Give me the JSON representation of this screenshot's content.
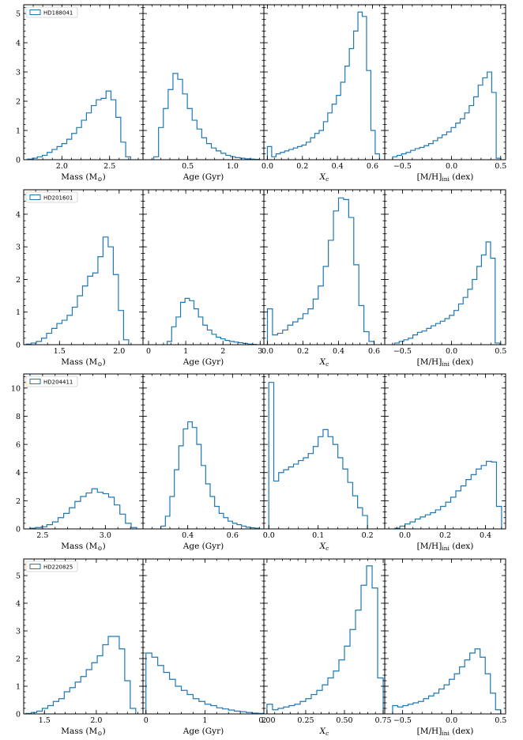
{
  "chart_data": [
    {
      "type": "histogram",
      "legend": "HD188041",
      "ylim": [
        0,
        5.3
      ],
      "yticks": [
        "0",
        "1",
        "2",
        "3",
        "4",
        "5"
      ],
      "yticks_values": [
        0,
        1,
        2,
        3,
        4,
        5
      ],
      "panels": [
        {
          "xlabel": "Mass (M⊙)",
          "xlim": [
            1.6,
            2.85
          ],
          "xticks": [
            "2.0",
            "2.5"
          ],
          "xticks_values": [
            2.0,
            2.5
          ],
          "x0": 1.64,
          "x1": 2.72,
          "heights": [
            0.02,
            0.05,
            0.1,
            0.15,
            0.25,
            0.35,
            0.45,
            0.55,
            0.7,
            0.9,
            1.1,
            1.35,
            1.6,
            1.85,
            2.05,
            2.1,
            2.35,
            2.05,
            1.45,
            0.6,
            0.1
          ]
        },
        {
          "xlabel": "Age (Gyr)",
          "xlim": [
            0.0,
            1.35
          ],
          "xticks": [
            "0.5",
            "1.0"
          ],
          "xticks_values": [
            0.5,
            1.0
          ],
          "x0": 0.12,
          "x1": 1.3,
          "heights": [
            0.1,
            1.1,
            1.75,
            2.4,
            2.95,
            2.75,
            2.25,
            1.75,
            1.35,
            1.05,
            0.75,
            0.55,
            0.4,
            0.3,
            0.22,
            0.15,
            0.1,
            0.07,
            0.05,
            0.03,
            0.02,
            0.01
          ]
        },
        {
          "xlabel": "Xc",
          "xlim": [
            -0.02,
            0.67
          ],
          "xticks": [
            "0.0",
            "0.2",
            "0.4",
            "0.6"
          ],
          "xticks_values": [
            0.0,
            0.2,
            0.4,
            0.6
          ],
          "x0": 0.0,
          "x1": 0.64,
          "heights": [
            0.45,
            0.1,
            0.2,
            0.25,
            0.3,
            0.35,
            0.4,
            0.45,
            0.5,
            0.6,
            0.75,
            0.9,
            1.0,
            1.3,
            1.6,
            1.9,
            2.2,
            2.65,
            3.2,
            3.8,
            4.4,
            5.05,
            4.9,
            3.05,
            1.0,
            0.2
          ]
        },
        {
          "xlabel": "[M/H]ini (dex)",
          "xlim": [
            -0.68,
            0.55
          ],
          "xticks": [
            "−0.5",
            "0.0",
            "0.5"
          ],
          "xticks_values": [
            -0.5,
            0.0,
            0.5
          ],
          "x0": -0.6,
          "x1": 0.5,
          "heights": [
            0.1,
            0.15,
            0.2,
            0.25,
            0.32,
            0.38,
            0.42,
            0.48,
            0.55,
            0.65,
            0.75,
            0.85,
            0.95,
            1.1,
            1.25,
            1.4,
            1.6,
            1.85,
            2.15,
            2.55,
            2.8,
            3.0,
            2.3,
            0.05
          ]
        }
      ]
    },
    {
      "type": "histogram",
      "legend": "HD201601",
      "ylim": [
        0,
        4.75
      ],
      "yticks": [
        "0",
        "1",
        "2",
        "3",
        "4"
      ],
      "yticks_values": [
        0,
        1,
        2,
        3,
        4
      ],
      "panels": [
        {
          "xlabel": "Mass (M⊙)",
          "xlim": [
            1.2,
            2.2
          ],
          "xticks": [
            "1.5",
            "2.0"
          ],
          "xticks_values": [
            1.5,
            2.0
          ],
          "x0": 1.22,
          "x1": 2.08,
          "heights": [
            0.02,
            0.05,
            0.1,
            0.2,
            0.35,
            0.5,
            0.65,
            0.75,
            0.9,
            1.15,
            1.5,
            1.8,
            2.1,
            2.2,
            2.7,
            3.3,
            3.0,
            2.15,
            1.05,
            0.15
          ]
        },
        {
          "xlabel": "Age (Gyr)",
          "xlim": [
            -0.15,
            3.1
          ],
          "xticks": [
            "0",
            "1",
            "2",
            "3"
          ],
          "xticks_values": [
            0,
            1,
            2,
            3
          ],
          "x0": 0.5,
          "x1": 2.9,
          "heights": [
            0.1,
            0.55,
            0.85,
            1.3,
            1.42,
            1.35,
            1.1,
            0.85,
            0.6,
            0.45,
            0.32,
            0.23,
            0.18,
            0.13,
            0.1,
            0.08,
            0.06,
            0.04,
            0.02,
            0.01
          ]
        },
        {
          "xlabel": "Xc",
          "xlim": [
            -0.02,
            0.66
          ],
          "xticks": [
            "0.0",
            "0.2",
            "0.4",
            "0.6"
          ],
          "xticks_values": [
            0.0,
            0.2,
            0.4,
            0.6
          ],
          "x0": 0.0,
          "x1": 0.6,
          "heights": [
            1.1,
            0.3,
            0.35,
            0.45,
            0.6,
            0.7,
            0.8,
            0.95,
            1.1,
            1.4,
            1.8,
            2.4,
            3.2,
            4.1,
            4.5,
            4.45,
            3.9,
            2.45,
            1.2,
            0.4,
            0.1
          ]
        },
        {
          "xlabel": "[M/H]ini (dex)",
          "xlim": [
            -0.68,
            0.55
          ],
          "xticks": [
            "−0.5",
            "0.0",
            "0.5"
          ],
          "xticks_values": [
            -0.5,
            0.0,
            0.5
          ],
          "x0": -0.58,
          "x1": 0.49,
          "heights": [
            0.05,
            0.1,
            0.15,
            0.2,
            0.3,
            0.38,
            0.42,
            0.5,
            0.58,
            0.65,
            0.72,
            0.8,
            0.9,
            1.05,
            1.25,
            1.45,
            1.7,
            2.0,
            2.4,
            2.75,
            3.15,
            2.65,
            0.05
          ]
        }
      ]
    },
    {
      "type": "histogram",
      "legend": "HD204411",
      "ylim": [
        0,
        11
      ],
      "yticks": [
        "0",
        "2",
        "4",
        "6",
        "8",
        "10"
      ],
      "yticks_values": [
        0,
        2,
        4,
        6,
        8,
        10
      ],
      "panels": [
        {
          "xlabel": "Mass (M⊙)",
          "xlim": [
            2.35,
            3.3
          ],
          "xticks": [
            "2.5",
            "3.0"
          ],
          "xticks_values": [
            2.5,
            3.0
          ],
          "x0": 2.4,
          "x1": 3.25,
          "heights": [
            0.05,
            0.1,
            0.15,
            0.3,
            0.5,
            0.8,
            1.1,
            1.5,
            1.95,
            2.3,
            2.55,
            2.85,
            2.6,
            2.5,
            2.25,
            1.7,
            1.05,
            0.4,
            0.1
          ]
        },
        {
          "xlabel": "Age (Gyr)",
          "xlim": [
            0.2,
            0.74
          ],
          "xticks": [
            "0.4",
            "0.6"
          ],
          "xticks_values": [
            0.4,
            0.6
          ],
          "x0": 0.28,
          "x1": 0.72,
          "heights": [
            0.2,
            0.9,
            2.3,
            4.2,
            5.9,
            7.1,
            7.6,
            7.2,
            6.0,
            4.5,
            3.2,
            2.3,
            1.6,
            1.1,
            0.8,
            0.55,
            0.4,
            0.3,
            0.2,
            0.12,
            0.08,
            0.05
          ]
        },
        {
          "xlabel": "Xc",
          "xlim": [
            -0.01,
            0.235
          ],
          "xticks": [
            "0.0",
            "0.1",
            "0.2"
          ],
          "xticks_values": [
            0.0,
            0.1,
            0.2
          ],
          "x0": 0.0,
          "x1": 0.2,
          "heights": [
            10.4,
            3.4,
            4.0,
            4.2,
            4.4,
            4.6,
            4.85,
            5.05,
            5.35,
            5.85,
            6.55,
            7.05,
            6.55,
            6.0,
            5.05,
            4.25,
            3.3,
            2.35,
            1.5,
            0.95
          ]
        },
        {
          "xlabel": "[M/H]ini (dex)",
          "xlim": [
            -0.1,
            0.5
          ],
          "xticks": [
            "0.0",
            "0.2",
            "0.4"
          ],
          "xticks_values": [
            0.0,
            0.2,
            0.4
          ],
          "x0": -0.05,
          "x1": 0.48,
          "heights": [
            0.05,
            0.2,
            0.35,
            0.5,
            0.7,
            0.85,
            1.0,
            1.15,
            1.35,
            1.6,
            1.9,
            2.25,
            2.7,
            3.05,
            3.5,
            3.85,
            4.25,
            4.5,
            4.8,
            4.75,
            1.6
          ]
        }
      ]
    },
    {
      "type": "histogram",
      "legend": "HD220825",
      "ylim": [
        0,
        5.6
      ],
      "yticks": [
        "0",
        "1",
        "2",
        "3",
        "4",
        "5"
      ],
      "yticks_values": [
        0,
        1,
        2,
        3,
        4,
        5
      ],
      "panels": [
        {
          "xlabel": "Mass (M⊙)",
          "xlim": [
            1.3,
            2.45
          ],
          "xticks": [
            "1.5",
            "2.0"
          ],
          "xticks_values": [
            1.5,
            2.0
          ],
          "x0": 1.32,
          "x1": 2.38,
          "heights": [
            0.02,
            0.05,
            0.1,
            0.2,
            0.3,
            0.45,
            0.55,
            0.8,
            0.95,
            1.15,
            1.35,
            1.6,
            1.85,
            2.1,
            2.5,
            2.8,
            2.8,
            2.35,
            1.2,
            0.2
          ]
        },
        {
          "xlabel": "Age (Gyr)",
          "xlim": [
            -0.05,
            2.0
          ],
          "xticks": [
            "0",
            "1",
            "2"
          ],
          "xticks_values": [
            0,
            1,
            2
          ],
          "x0": 0.0,
          "x1": 2.0,
          "heights": [
            2.2,
            2.05,
            1.75,
            1.5,
            1.25,
            1.0,
            0.85,
            0.7,
            0.55,
            0.45,
            0.35,
            0.3,
            0.22,
            0.18,
            0.14,
            0.1,
            0.08,
            0.05,
            0.03,
            0.02
          ]
        },
        {
          "xlabel": "Xc",
          "xlim": [
            -0.02,
            0.76
          ],
          "xticks": [
            "0.00",
            "0.25",
            "0.50",
            "0.75"
          ],
          "xticks_values": [
            0.0,
            0.25,
            0.5,
            0.75
          ],
          "x0": 0.0,
          "x1": 0.75,
          "heights": [
            0.35,
            0.15,
            0.2,
            0.25,
            0.3,
            0.35,
            0.45,
            0.55,
            0.7,
            0.85,
            1.05,
            1.3,
            1.55,
            1.95,
            2.45,
            3.05,
            3.75,
            4.65,
            5.35,
            4.55,
            1.3
          ]
        },
        {
          "xlabel": "[M/H]ini (dex)",
          "xlim": [
            -0.68,
            0.55
          ],
          "xticks": [
            "−0.5",
            "0.0",
            "0.5"
          ],
          "xticks_values": [
            -0.5,
            0.0,
            0.5
          ],
          "x0": -0.6,
          "x1": 0.5,
          "heights": [
            0.3,
            0.25,
            0.3,
            0.35,
            0.4,
            0.45,
            0.55,
            0.65,
            0.75,
            0.9,
            1.05,
            1.25,
            1.45,
            1.7,
            1.95,
            2.2,
            2.35,
            2.05,
            1.45,
            0.75,
            0.15
          ]
        }
      ]
    }
  ]
}
